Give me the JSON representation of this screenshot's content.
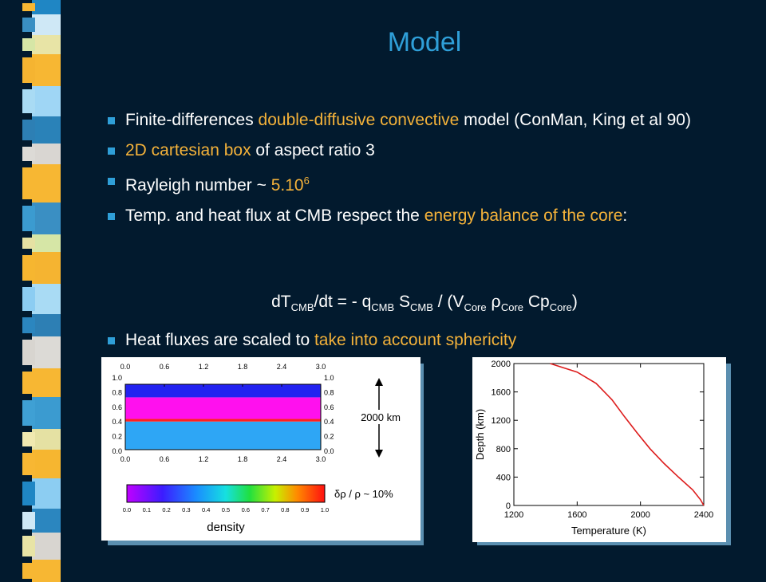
{
  "slide": {
    "title": "Model",
    "bullets": [
      {
        "parts": [
          {
            "t": "Finite-differences ",
            "hl": false
          },
          {
            "t": "double-diffusive convective",
            "hl": true
          },
          {
            "t": " model (ConMan, King et al 90)",
            "hl": false
          }
        ]
      },
      {
        "parts": [
          {
            "t": "2D cartesian box",
            "hl": true
          },
          {
            "t": " of aspect ratio 3",
            "hl": false
          }
        ]
      },
      {
        "parts": [
          {
            "t": "Rayleigh number ~ ",
            "hl": false
          },
          {
            "t": "5.10",
            "hl": true
          }
        ],
        "sup": "6"
      },
      {
        "parts": [
          {
            "t": "Temp. and heat flux at CMB respect the ",
            "hl": false
          },
          {
            "t": "energy balance of the core",
            "hl": true
          },
          {
            "t": ":",
            "hl": false
          }
        ]
      }
    ],
    "equation": {
      "a": "dT",
      "a_sub": "CMB",
      "b": "/dt = - q",
      "b_sub": "CMB",
      "c": " S",
      "c_sub": "CMB",
      "d": " / (V",
      "d_sub": "Core",
      "rho": "ρ",
      "rho_sub": "Core",
      "e": " Cp",
      "e_sub": "Core",
      "f": ")"
    },
    "last_bullet": {
      "plain": "Heat fluxes are scaled to ",
      "hl": "take into account sphericity"
    }
  },
  "colors": {
    "background": "#021a2e",
    "accent": "#2f9fd8",
    "highlight": "#f4b23a"
  },
  "figure_left": {
    "top_ticks": [
      "0.0",
      "0.6",
      "1.2",
      "1.8",
      "2.4",
      "3.0"
    ],
    "bottom_ticks": [
      "0.0",
      "0.6",
      "1.2",
      "1.8",
      "2.4",
      "3.0"
    ],
    "y_ticks": [
      "1.0",
      "0.8",
      "0.6",
      "0.4",
      "0.2",
      "0.0"
    ],
    "layers": [
      {
        "from": 0.0,
        "to": 0.43,
        "color": "#2ea6f5"
      },
      {
        "from": 0.43,
        "to": 0.47,
        "color": "#ff2020"
      },
      {
        "from": 0.47,
        "to": 0.8,
        "color": "#ff10ee"
      },
      {
        "from": 0.8,
        "to": 1.0,
        "color": "#2323f0"
      }
    ],
    "scale_label": "2000 km",
    "colorbar_ticks": [
      "0.0",
      "0.1",
      "0.2",
      "0.3",
      "0.4",
      "0.5",
      "0.6",
      "0.7",
      "0.8",
      "0.9",
      "1.0"
    ],
    "colorbar_label": "density",
    "ratio_label": "δρ / ρ ~ 10%"
  },
  "chart_data": {
    "type": "line",
    "title": "",
    "xlabel": "Temperature (K)",
    "ylabel": "Depth (km)",
    "xlim": [
      1200,
      2400
    ],
    "ylim": [
      0,
      2000
    ],
    "x_ticks": [
      "1200",
      "1600",
      "2000",
      "2400"
    ],
    "y_ticks": [
      "0",
      "400",
      "800",
      "1200",
      "1600",
      "2000"
    ],
    "y_reversed": false,
    "grid": false,
    "series": [
      {
        "color": "#dd1c1c",
        "points": [
          [
            1430,
            2000
          ],
          [
            1600,
            1880
          ],
          [
            1720,
            1720
          ],
          [
            1820,
            1490
          ],
          [
            1900,
            1250
          ],
          [
            1980,
            1020
          ],
          [
            2060,
            800
          ],
          [
            2150,
            590
          ],
          [
            2240,
            400
          ],
          [
            2330,
            220
          ],
          [
            2380,
            80
          ],
          [
            2400,
            0
          ]
        ]
      }
    ]
  }
}
